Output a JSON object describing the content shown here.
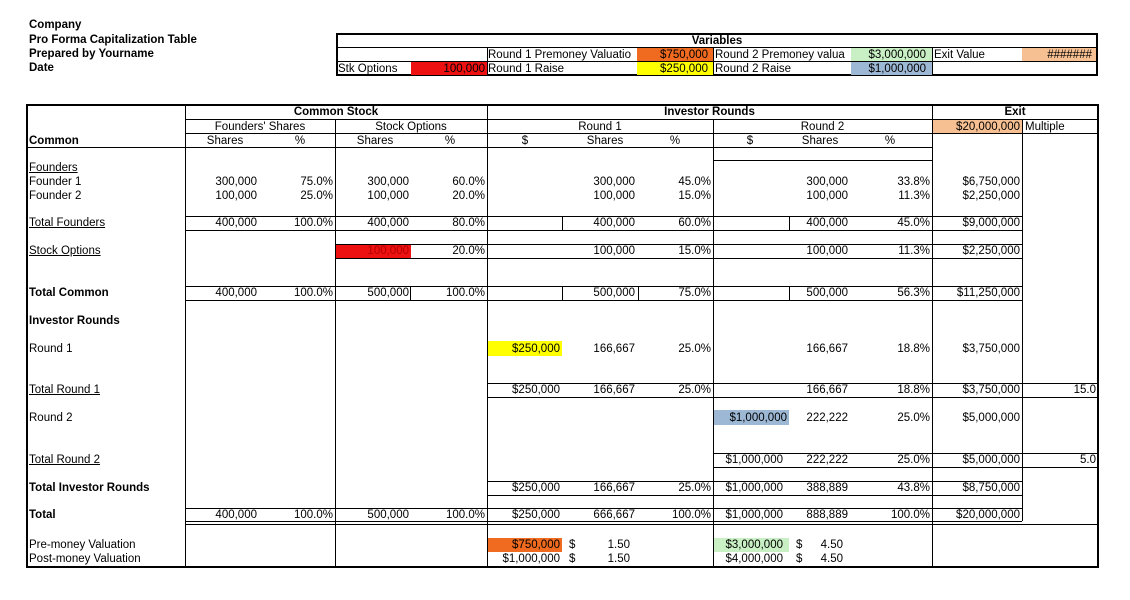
{
  "header": {
    "company": "Company",
    "title": "Pro Forma Capitalization Table",
    "prepared_by": "Prepared by Yourname",
    "date": "Date"
  },
  "variables": {
    "title": "Variables",
    "r1_premoney_label": "Round 1 Premoney Valuatio",
    "r1_premoney_value": "$750,000",
    "r2_premoney_label": "Round 2 Premoney valua",
    "r2_premoney_value": "$3,000,000",
    "exit_value_label": "Exit Value",
    "exit_value_value": "#######",
    "stk_options_label": "Stk Options",
    "stk_options_value": "100,000",
    "r1_raise_label": "Round 1 Raise",
    "r1_raise_value": "$250,000",
    "r2_raise_label": "Round 2 Raise",
    "r2_raise_value": "$1,000,000"
  },
  "colors": {
    "red": "#ee1111",
    "orange": "#f06a1f",
    "yellow": "#ffff00",
    "light_green": "#c9f0c4",
    "peach": "#f7c092",
    "steel_blue": "#9db8d4"
  },
  "headers": {
    "common_stock": "Common Stock",
    "investor_rounds": "Investor Rounds",
    "exit": "Exit",
    "founders_shares": "Founders' Shares",
    "stock_options": "Stock Options",
    "round1": "Round 1",
    "round2": "Round 2",
    "exit_value": "$20,000,000",
    "multiple": "Multiple",
    "common": "Common",
    "shares": "Shares",
    "pct": "%",
    "dollar": "$"
  },
  "rows": {
    "founders": "Founders",
    "founder1": {
      "label": "Founder 1",
      "fs": "300,000",
      "fp": "75.0%",
      "os": "300,000",
      "op": "60.0%",
      "r1s": "300,000",
      "r1p": "45.0%",
      "r2s": "300,000",
      "r2p": "33.8%",
      "exit": "$6,750,000"
    },
    "founder2": {
      "label": "Founder 2",
      "fs": "100,000",
      "fp": "25.0%",
      "os": "100,000",
      "op": "20.0%",
      "r1s": "100,000",
      "r1p": "15.0%",
      "r2s": "100,000",
      "r2p": "11.3%",
      "exit": "$2,250,000"
    },
    "total_founders": {
      "label": "Total Founders",
      "fs": "400,000",
      "fp": "100.0%",
      "os": "400,000",
      "op": "80.0%",
      "r1s": "400,000",
      "r1p": "60.0%",
      "r2s": "400,000",
      "r2p": "45.0%",
      "exit": "$9,000,000"
    },
    "stock_options": {
      "label": "Stock Options",
      "os": "100,000",
      "op": "20.0%",
      "r1s": "100,000",
      "r1p": "15.0%",
      "r2s": "100,000",
      "r2p": "11.3%",
      "exit": "$2,250,000"
    },
    "total_common": {
      "label": "Total Common",
      "fs": "400,000",
      "fp": "100.0%",
      "os": "500,000",
      "op": "100.0%",
      "r1s": "500,000",
      "r1p": "75.0%",
      "r2s": "500,000",
      "r2p": "56.3%",
      "exit": "$11,250,000"
    },
    "investor_rounds": "Investor Rounds",
    "round1": {
      "label": "Round 1",
      "r1d": "$250,000",
      "r1s": "166,667",
      "r1p": "25.0%",
      "r2s": "166,667",
      "r2p": "18.8%",
      "exit": "$3,750,000"
    },
    "total_round1": {
      "label": "Total Round 1",
      "r1d": "$250,000",
      "r1s": "166,667",
      "r1p": "25.0%",
      "r2s": "166,667",
      "r2p": "18.8%",
      "exit": "$3,750,000",
      "mult": "15.0"
    },
    "round2": {
      "label": "Round 2",
      "r2d": "$1,000,000",
      "r2s": "222,222",
      "r2p": "25.0%",
      "exit": "$5,000,000"
    },
    "total_round2": {
      "label": "Total Round 2",
      "r2d": "$1,000,000",
      "r2s": "222,222",
      "r2p": "25.0%",
      "exit": "$5,000,000",
      "mult": "5.0"
    },
    "total_investor": {
      "label": "Total Investor Rounds",
      "r1d": "$250,000",
      "r1s": "166,667",
      "r1p": "25.0%",
      "r2d": "$1,000,000",
      "r2s": "388,889",
      "r2p": "43.8%",
      "exit": "$8,750,000"
    },
    "total": {
      "label": "Total",
      "fs": "400,000",
      "fp": "100.0%",
      "os": "500,000",
      "op": "100.0%",
      "r1d": "$250,000",
      "r1s": "666,667",
      "r1p": "100.0%",
      "r2d": "$1,000,000",
      "r2s": "888,889",
      "r2p": "100.0%",
      "exit": "$20,000,000"
    },
    "pre_money": {
      "label": "Pre-money Valuation",
      "r1v": "$750,000",
      "r1cur": "$",
      "r1pps": "1.50",
      "r2v": "$3,000,000",
      "r2cur": "$",
      "r2pps": "4.50"
    },
    "post_money": {
      "label": "Post-money Valuation",
      "r1v": "$1,000,000",
      "r1cur": "$",
      "r1pps": "1.50",
      "r2v": "$4,000,000",
      "r2cur": "$",
      "r2pps": "4.50"
    }
  }
}
